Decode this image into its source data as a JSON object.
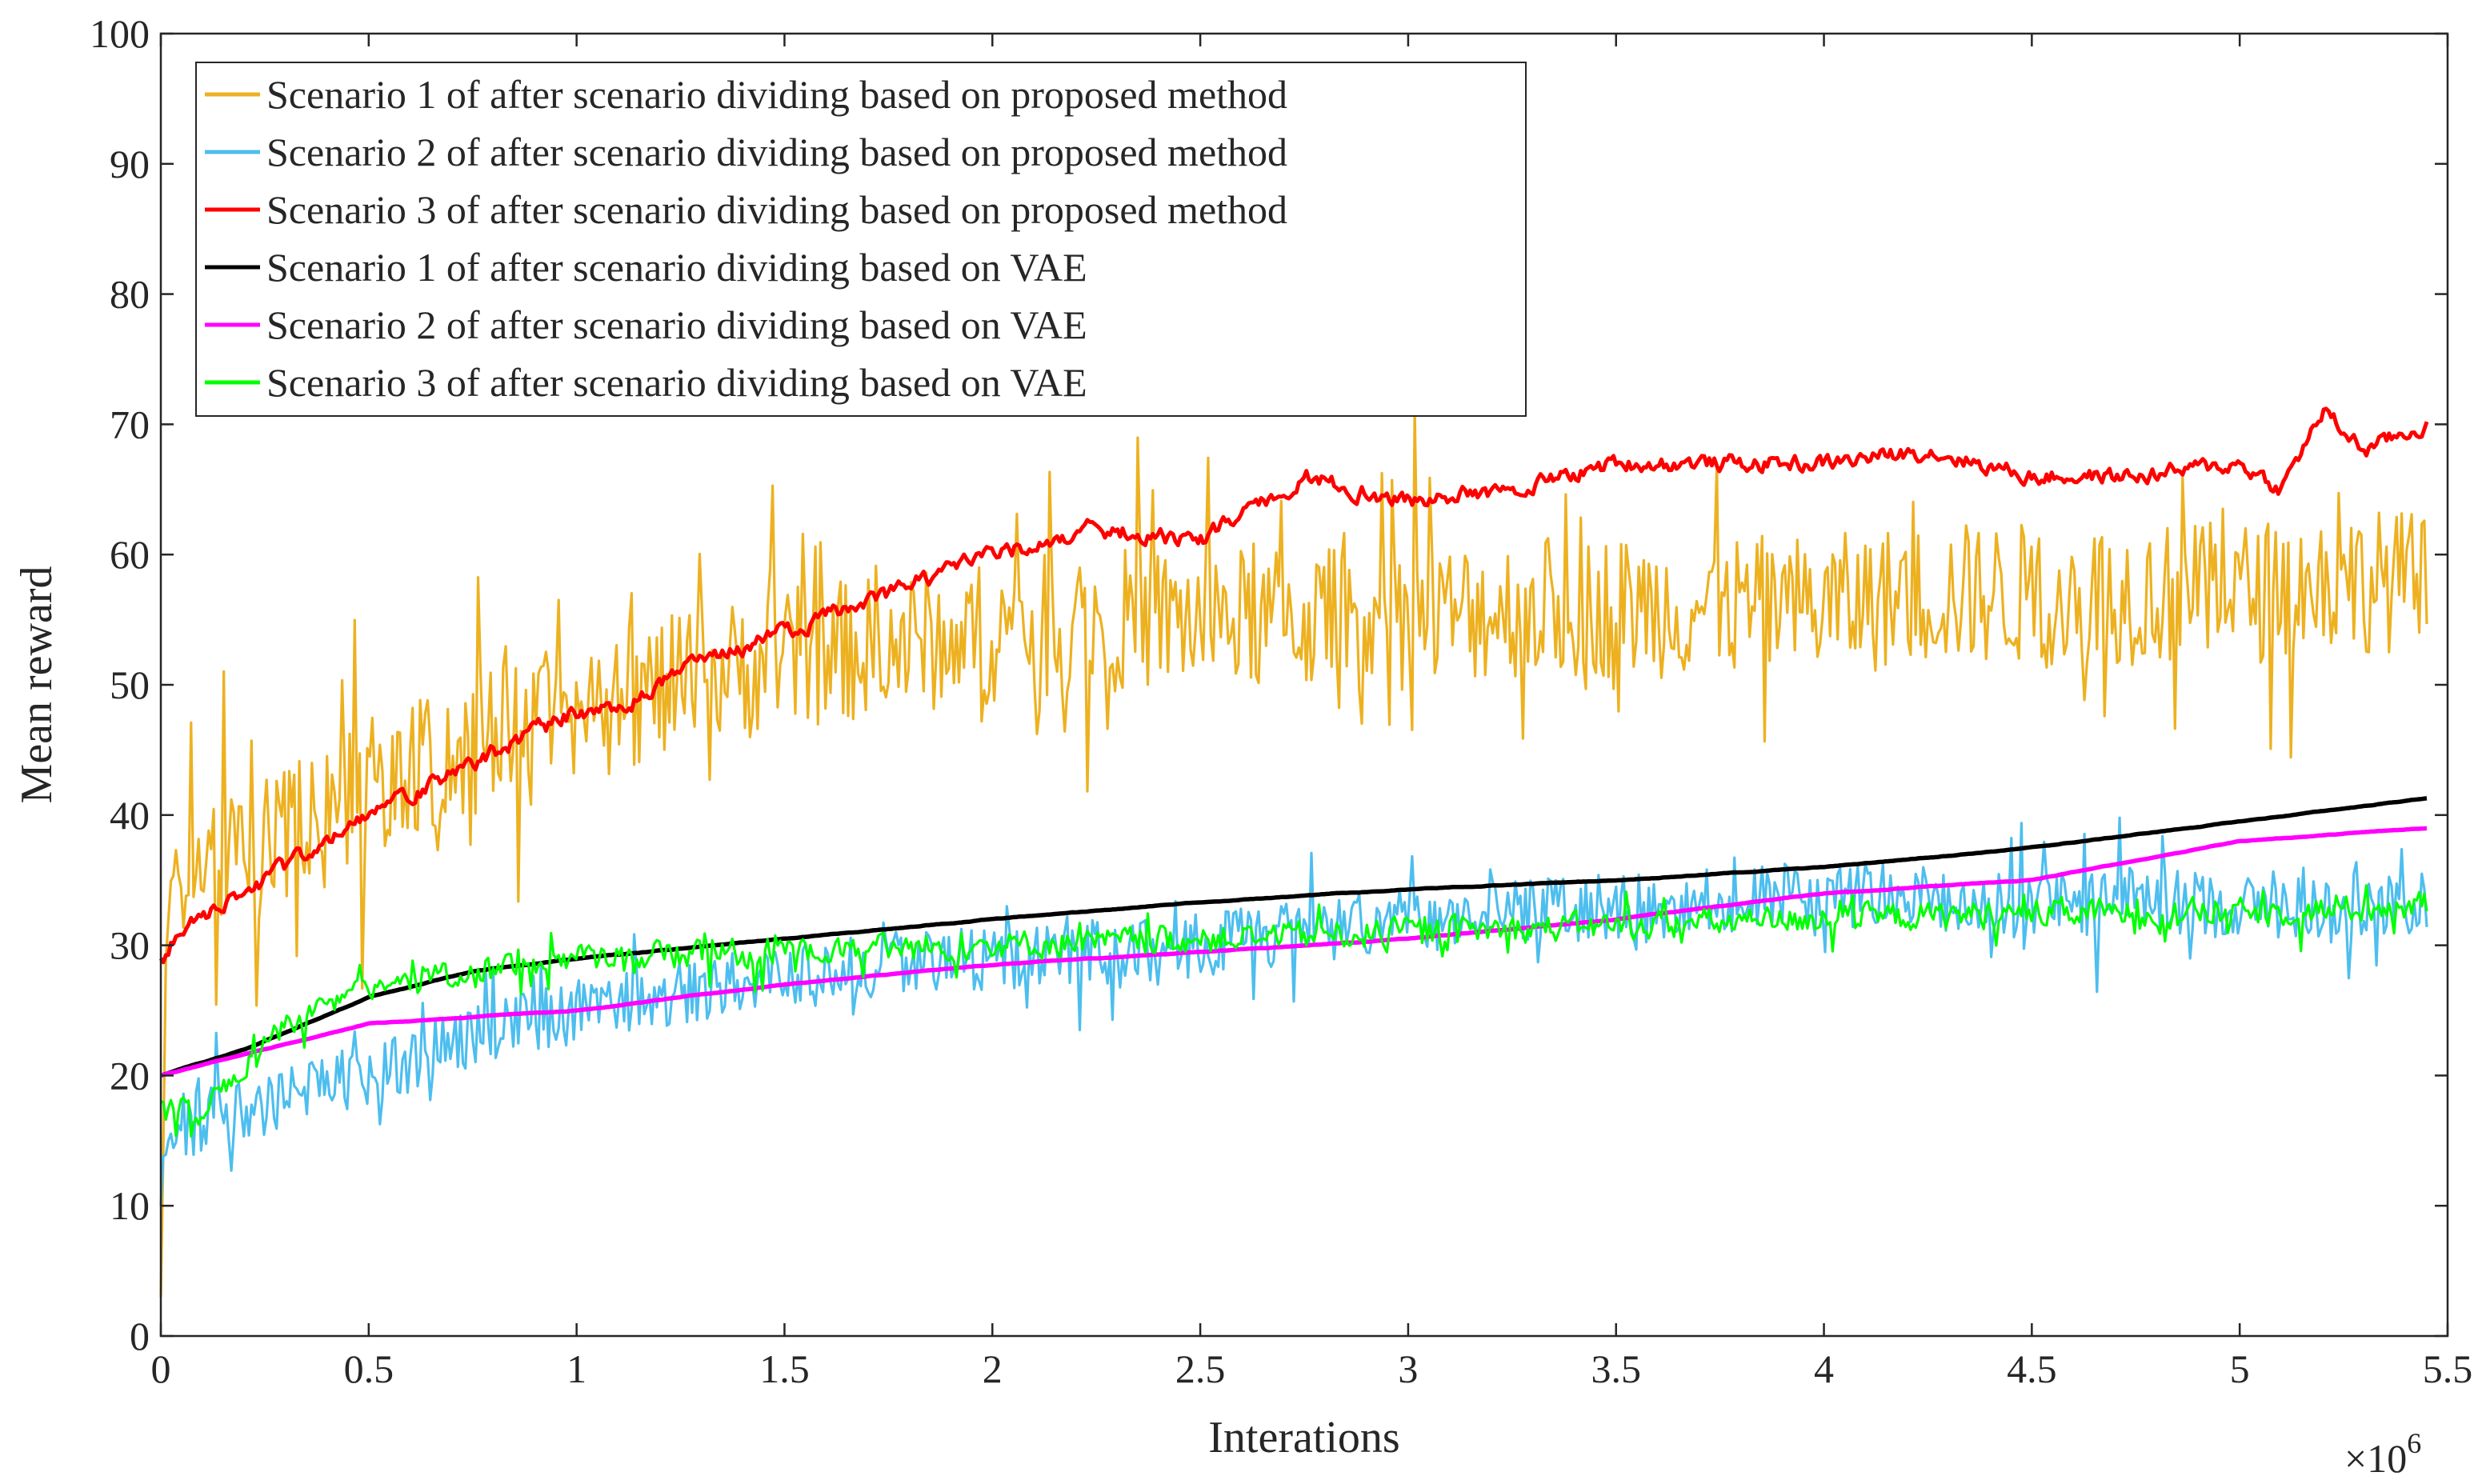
{
  "chart_data": {
    "type": "line",
    "title": "",
    "xlabel": "Interations",
    "ylabel": "Mean reward",
    "x_scale_label": "×10",
    "x_scale_exponent": "6",
    "xlim": [
      0,
      5.5
    ],
    "ylim": [
      0,
      100
    ],
    "x_ticks": [
      "0",
      "0.5",
      "1",
      "1.5",
      "2",
      "2.5",
      "3",
      "3.5",
      "4",
      "4.5",
      "5",
      "5.5"
    ],
    "y_ticks": [
      "0",
      "10",
      "20",
      "30",
      "40",
      "50",
      "60",
      "70",
      "80",
      "90",
      "100"
    ],
    "grid": false,
    "legend_position": "top-left",
    "x_units_note": "iterations in millions (×10^6)",
    "series": [
      {
        "name": "Scenario 1 of after scenario dividing based on proposed method",
        "color": "#EDB120",
        "noise": 5.5,
        "spike": 12,
        "seed": 11,
        "smooth": 0,
        "start": 3,
        "x": [
          0,
          0.02,
          0.1,
          0.3,
          0.5,
          0.75,
          1.0,
          1.25,
          1.5,
          1.75,
          2.0,
          2.25,
          2.5,
          2.75,
          3.0,
          3.25,
          3.5,
          3.75,
          4.0,
          4.25,
          4.5,
          4.75,
          5.0,
          5.25,
          5.45
        ],
        "y": [
          3,
          35,
          36,
          38,
          42,
          45,
          48,
          50,
          52,
          53,
          54,
          55,
          55,
          55,
          55,
          56,
          56,
          56,
          56,
          57,
          57,
          57,
          57,
          58,
          58
        ]
      },
      {
        "name": "Scenario 2 of after scenario dividing based on proposed method",
        "color": "#4DBEEE",
        "noise": 2.5,
        "spike": 5,
        "seed": 22,
        "smooth": 0,
        "start": 10,
        "x": [
          0,
          0.02,
          0.1,
          0.3,
          0.5,
          0.75,
          1.0,
          1.25,
          1.5,
          1.75,
          2.0,
          2.25,
          2.5,
          2.75,
          3.0,
          3.25,
          3.5,
          3.75,
          4.0,
          4.25,
          4.5,
          4.75,
          5.0,
          5.25,
          5.45
        ],
        "y": [
          10,
          16,
          16.5,
          18,
          20,
          23,
          25,
          26.5,
          27.5,
          28.5,
          29,
          29.5,
          30,
          31,
          32,
          32.5,
          33,
          33.5,
          34,
          33.5,
          33,
          33.5,
          33,
          33,
          33
        ]
      },
      {
        "name": "Scenario 3 of after scenario dividing based on proposed method",
        "color": "#FF0000",
        "noise": 1.3,
        "spike": 0,
        "seed": 33,
        "smooth": 0.6,
        "start": 29,
        "x": [
          0,
          0.05,
          0.2,
          0.35,
          0.5,
          0.75,
          1.0,
          1.1,
          1.25,
          1.5,
          1.75,
          2.0,
          2.25,
          2.5,
          2.75,
          3.0,
          3.25,
          3.5,
          3.75,
          4.0,
          4.25,
          4.5,
          4.75,
          5.0,
          5.1,
          5.2,
          5.3,
          5.45
        ],
        "y": [
          29,
          31,
          34,
          37,
          40,
          44,
          48,
          48,
          51,
          54,
          57,
          60,
          62,
          61,
          66,
          64,
          65,
          67,
          67,
          67,
          68,
          66,
          66,
          67,
          65,
          71,
          68,
          70
        ]
      },
      {
        "name": "Scenario 1 of after scenario dividing based on VAE",
        "color": "#000000",
        "noise": 0.15,
        "spike": 0,
        "seed": 44,
        "smooth": 0.9,
        "start": 20,
        "x": [
          0,
          0.2,
          0.5,
          0.75,
          1.0,
          1.5,
          2.0,
          2.5,
          3.0,
          3.5,
          4.0,
          4.5,
          5.0,
          5.45
        ],
        "y": [
          20,
          22,
          26,
          28,
          29,
          30.5,
          32,
          33.3,
          34.3,
          35,
          36,
          37.5,
          39.5,
          41.3
        ]
      },
      {
        "name": "Scenario 2 of after scenario dividing based on VAE",
        "color": "#FF00FF",
        "noise": 0.15,
        "spike": 0,
        "seed": 55,
        "smooth": 0.9,
        "start": 20,
        "x": [
          0,
          0.25,
          0.5,
          1.0,
          1.5,
          2.0,
          2.5,
          3.0,
          3.5,
          4.0,
          4.5,
          5.0,
          5.45
        ],
        "y": [
          20,
          22,
          24,
          25,
          27,
          28.5,
          29.5,
          30.5,
          32,
          34,
          35,
          38,
          39
        ]
      },
      {
        "name": "Scenario 3 of after scenario dividing based on VAE",
        "color": "#00FF00",
        "noise": 1.4,
        "spike": 2.5,
        "seed": 66,
        "smooth": 0.3,
        "start": 18,
        "x": [
          0,
          0.1,
          0.3,
          0.5,
          0.75,
          1.0,
          1.5,
          2.0,
          2.5,
          3.0,
          3.5,
          4.0,
          4.5,
          5.0,
          5.45
        ],
        "y": [
          18,
          17,
          24,
          27,
          28,
          29,
          29.5,
          30,
          30.5,
          31,
          31.5,
          32,
          32.5,
          32.5,
          33
        ]
      }
    ]
  }
}
